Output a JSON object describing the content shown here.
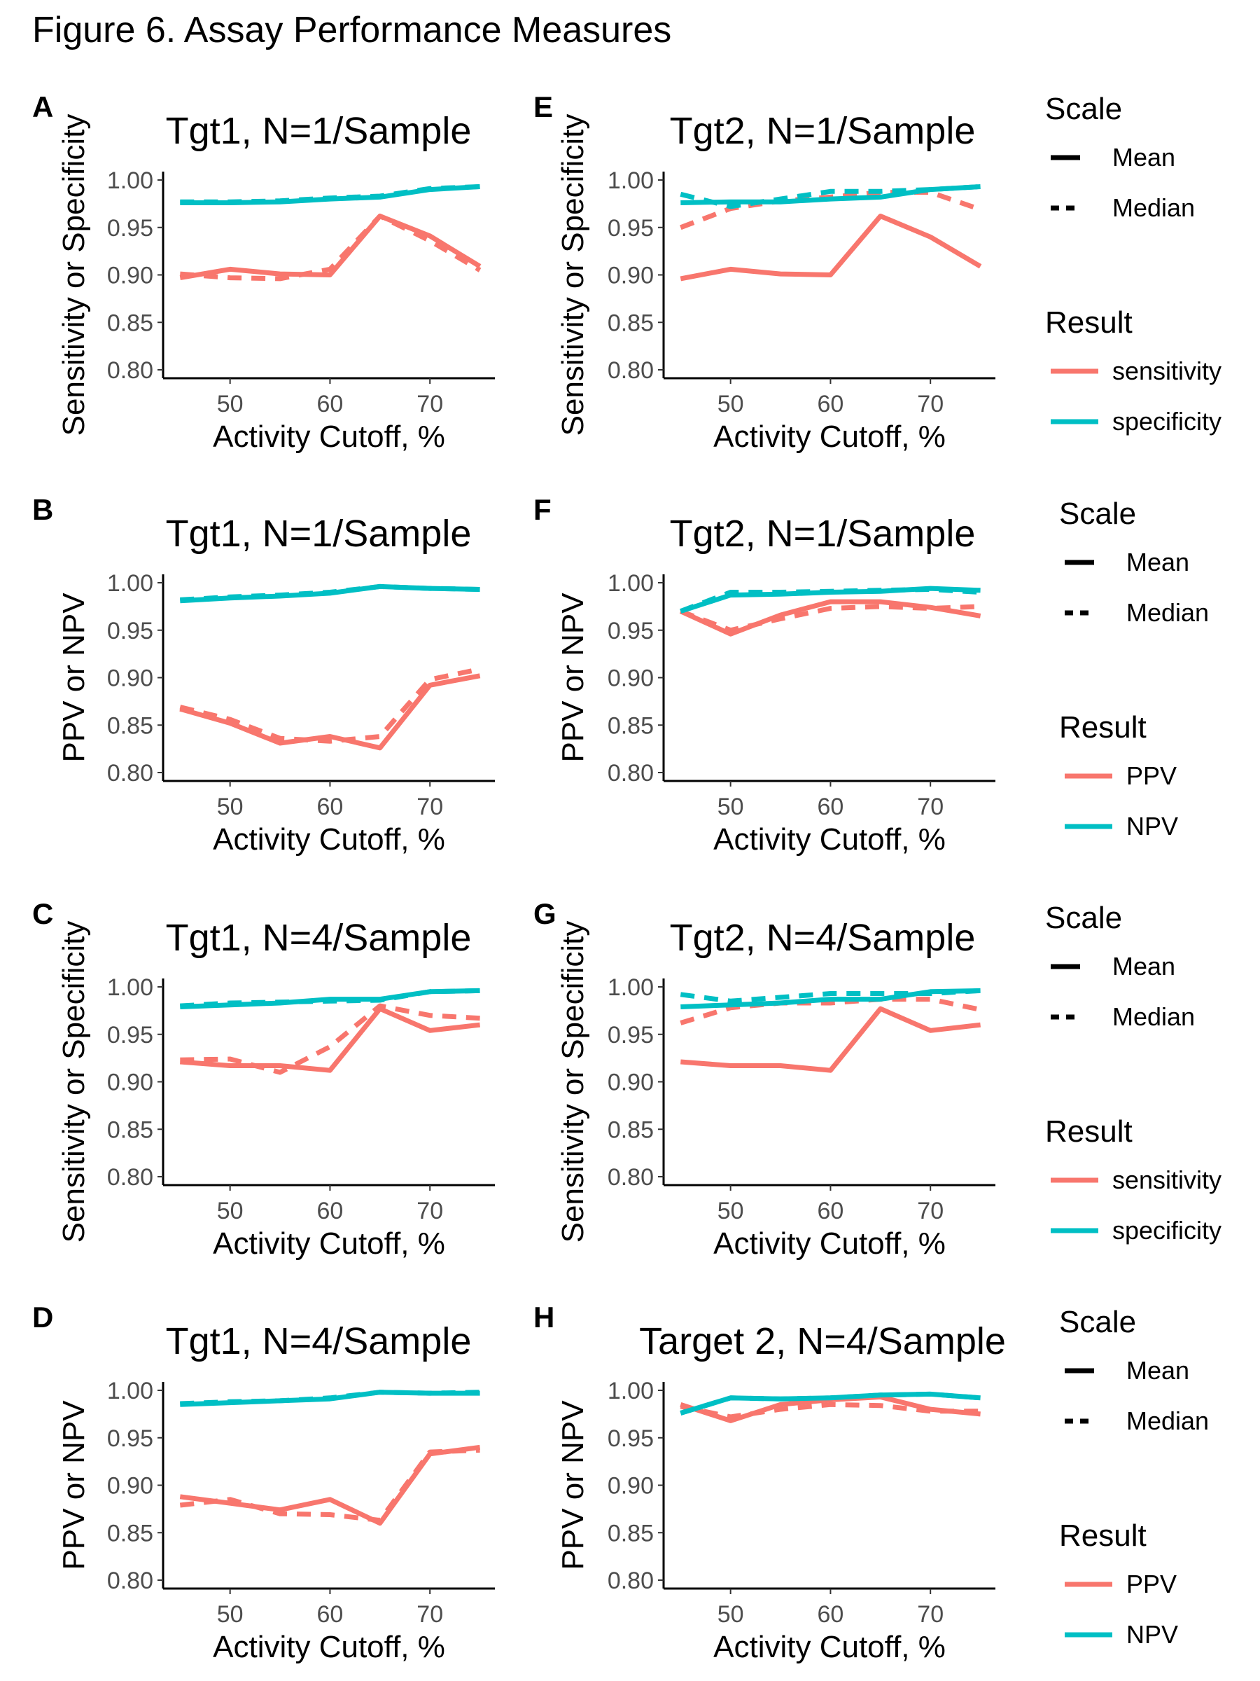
{
  "figure_title": "Figure 6. Assay Performance Measures",
  "colors": {
    "red": "#F8766D",
    "teal": "#00BFC4"
  },
  "chart_data": [
    {
      "panel": "A",
      "type": "line",
      "title": "Tgt1, N=1/Sample",
      "xlabel": "Activity Cutoff, %",
      "ylabel": "Sensitivity or Specificity",
      "x": [
        45,
        50,
        55,
        60,
        65,
        70,
        75
      ],
      "xticks": [
        50,
        60,
        70
      ],
      "ylim": [
        0.8,
        1.0
      ],
      "yticks": [
        "0.80",
        "0.85",
        "0.90",
        "0.95",
        "1.00"
      ],
      "series": [
        {
          "name": "sensitivity",
          "scale": "Mean",
          "values": [
            0.897,
            0.906,
            0.901,
            0.9,
            0.962,
            0.941,
            0.909
          ]
        },
        {
          "name": "sensitivity",
          "scale": "Median",
          "values": [
            0.901,
            0.897,
            0.896,
            0.906,
            0.962,
            0.936,
            0.905
          ]
        },
        {
          "name": "specificity",
          "scale": "Mean",
          "values": [
            0.976,
            0.976,
            0.977,
            0.98,
            0.982,
            0.99,
            0.993
          ]
        },
        {
          "name": "specificity",
          "scale": "Median",
          "values": [
            0.977,
            0.977,
            0.978,
            0.981,
            0.983,
            0.991,
            0.993
          ]
        }
      ]
    },
    {
      "panel": "B",
      "type": "line",
      "title": "Tgt1, N=1/Sample",
      "xlabel": "Activity Cutoff, %",
      "ylabel": "PPV or NPV",
      "x": [
        45,
        50,
        55,
        60,
        65,
        70,
        75
      ],
      "xticks": [
        50,
        60,
        70
      ],
      "ylim": [
        0.8,
        1.0
      ],
      "yticks": [
        "0.80",
        "0.85",
        "0.90",
        "0.95",
        "1.00"
      ],
      "series": [
        {
          "name": "PPV",
          "scale": "Mean",
          "values": [
            0.867,
            0.852,
            0.831,
            0.838,
            0.826,
            0.892,
            0.902
          ]
        },
        {
          "name": "PPV",
          "scale": "Median",
          "values": [
            0.869,
            0.856,
            0.836,
            0.833,
            0.838,
            0.898,
            0.909
          ]
        },
        {
          "name": "NPV",
          "scale": "Mean",
          "values": [
            0.981,
            0.984,
            0.986,
            0.989,
            0.996,
            0.994,
            0.993
          ]
        },
        {
          "name": "NPV",
          "scale": "Median",
          "values": [
            0.982,
            0.985,
            0.987,
            0.99,
            0.996,
            0.994,
            0.993
          ]
        }
      ]
    },
    {
      "panel": "C",
      "type": "line",
      "title": "Tgt1, N=4/Sample",
      "xlabel": "Activity Cutoff, %",
      "ylabel": "Sensitivity or Specificity",
      "x": [
        45,
        50,
        55,
        60,
        65,
        70,
        75
      ],
      "xticks": [
        50,
        60,
        70
      ],
      "ylim": [
        0.8,
        1.0
      ],
      "yticks": [
        "0.80",
        "0.85",
        "0.90",
        "0.95",
        "1.00"
      ],
      "series": [
        {
          "name": "sensitivity",
          "scale": "Mean",
          "values": [
            0.921,
            0.917,
            0.917,
            0.912,
            0.977,
            0.954,
            0.96
          ]
        },
        {
          "name": "sensitivity",
          "scale": "Median",
          "values": [
            0.923,
            0.924,
            0.91,
            0.937,
            0.98,
            0.97,
            0.967
          ]
        },
        {
          "name": "specificity",
          "scale": "Mean",
          "values": [
            0.979,
            0.981,
            0.983,
            0.987,
            0.987,
            0.995,
            0.996
          ]
        },
        {
          "name": "specificity",
          "scale": "Median",
          "values": [
            0.98,
            0.983,
            0.984,
            0.985,
            0.986,
            0.995,
            0.996
          ]
        }
      ]
    },
    {
      "panel": "D",
      "type": "line",
      "title": "Tgt1, N=4/Sample",
      "xlabel": "Activity Cutoff, %",
      "ylabel": "PPV or NPV",
      "x": [
        45,
        50,
        55,
        60,
        65,
        70,
        75
      ],
      "xticks": [
        50,
        60,
        70
      ],
      "ylim": [
        0.8,
        1.0
      ],
      "yticks": [
        "0.80",
        "0.85",
        "0.90",
        "0.95",
        "1.00"
      ],
      "series": [
        {
          "name": "PPV",
          "scale": "Mean",
          "values": [
            0.888,
            0.881,
            0.874,
            0.885,
            0.86,
            0.933,
            0.94
          ]
        },
        {
          "name": "PPV",
          "scale": "Median",
          "values": [
            0.879,
            0.885,
            0.87,
            0.869,
            0.863,
            0.935,
            0.937
          ]
        },
        {
          "name": "NPV",
          "scale": "Mean",
          "values": [
            0.985,
            0.987,
            0.989,
            0.991,
            0.998,
            0.997,
            0.997
          ]
        },
        {
          "name": "NPV",
          "scale": "Median",
          "values": [
            0.986,
            0.988,
            0.989,
            0.992,
            0.998,
            0.997,
            0.998
          ]
        }
      ]
    },
    {
      "panel": "E",
      "type": "line",
      "title": "Tgt2, N=1/Sample",
      "xlabel": "Activity Cutoff, %",
      "ylabel": "Sensitivity or Specificity",
      "x": [
        45,
        50,
        55,
        60,
        65,
        70,
        75
      ],
      "xticks": [
        50,
        60,
        70
      ],
      "ylim": [
        0.8,
        1.0
      ],
      "yticks": [
        "0.80",
        "0.85",
        "0.90",
        "0.95",
        "1.00"
      ],
      "series": [
        {
          "name": "sensitivity",
          "scale": "Mean",
          "values": [
            0.896,
            0.906,
            0.901,
            0.9,
            0.962,
            0.94,
            0.909
          ]
        },
        {
          "name": "sensitivity",
          "scale": "Median",
          "values": [
            0.95,
            0.97,
            0.978,
            0.982,
            0.987,
            0.987,
            0.969
          ]
        },
        {
          "name": "specificity",
          "scale": "Mean",
          "values": [
            0.976,
            0.977,
            0.977,
            0.98,
            0.982,
            0.99,
            0.993
          ]
        },
        {
          "name": "specificity",
          "scale": "Median",
          "values": [
            0.985,
            0.972,
            0.98,
            0.988,
            0.988,
            0.99,
            0.993
          ]
        }
      ]
    },
    {
      "panel": "F",
      "type": "line",
      "title": "Tgt2, N=1/Sample",
      "xlabel": "Activity Cutoff, %",
      "ylabel": "PPV or NPV",
      "x": [
        45,
        50,
        55,
        60,
        65,
        70,
        75
      ],
      "xticks": [
        50,
        60,
        70
      ],
      "ylim": [
        0.8,
        1.0
      ],
      "yticks": [
        "0.80",
        "0.85",
        "0.90",
        "0.95",
        "1.00"
      ],
      "series": [
        {
          "name": "PPV",
          "scale": "Mean",
          "values": [
            0.97,
            0.946,
            0.966,
            0.98,
            0.98,
            0.974,
            0.965
          ]
        },
        {
          "name": "PPV",
          "scale": "Median",
          "values": [
            0.97,
            0.95,
            0.962,
            0.973,
            0.975,
            0.973,
            0.975
          ]
        },
        {
          "name": "NPV",
          "scale": "Mean",
          "values": [
            0.97,
            0.987,
            0.988,
            0.99,
            0.991,
            0.994,
            0.992
          ]
        },
        {
          "name": "NPV",
          "scale": "Median",
          "values": [
            0.97,
            0.99,
            0.99,
            0.991,
            0.992,
            0.993,
            0.99
          ]
        }
      ]
    },
    {
      "panel": "G",
      "type": "line",
      "title": "Tgt2, N=4/Sample",
      "xlabel": "Activity Cutoff, %",
      "ylabel": "Sensitivity or Specificity",
      "x": [
        45,
        50,
        55,
        60,
        65,
        70,
        75
      ],
      "xticks": [
        50,
        60,
        70
      ],
      "ylim": [
        0.8,
        1.0
      ],
      "yticks": [
        "0.80",
        "0.85",
        "0.90",
        "0.95",
        "1.00"
      ],
      "series": [
        {
          "name": "sensitivity",
          "scale": "Mean",
          "values": [
            0.921,
            0.917,
            0.917,
            0.912,
            0.977,
            0.954,
            0.96
          ]
        },
        {
          "name": "sensitivity",
          "scale": "Median",
          "values": [
            0.962,
            0.978,
            0.983,
            0.983,
            0.987,
            0.987,
            0.976
          ]
        },
        {
          "name": "specificity",
          "scale": "Mean",
          "values": [
            0.979,
            0.981,
            0.983,
            0.987,
            0.987,
            0.995,
            0.996
          ]
        },
        {
          "name": "specificity",
          "scale": "Median",
          "values": [
            0.992,
            0.985,
            0.989,
            0.993,
            0.993,
            0.993,
            0.996
          ]
        }
      ]
    },
    {
      "panel": "H",
      "type": "line",
      "title": "Target 2, N=4/Sample",
      "xlabel": "Activity Cutoff, %",
      "ylabel": "PPV or NPV",
      "x": [
        45,
        50,
        55,
        60,
        65,
        70,
        75
      ],
      "xticks": [
        50,
        60,
        70
      ],
      "ylim": [
        0.8,
        1.0
      ],
      "yticks": [
        "0.80",
        "0.85",
        "0.90",
        "0.95",
        "1.00"
      ],
      "series": [
        {
          "name": "PPV",
          "scale": "Mean",
          "values": [
            0.985,
            0.968,
            0.985,
            0.99,
            0.993,
            0.98,
            0.975
          ]
        },
        {
          "name": "PPV",
          "scale": "Median",
          "values": [
            0.983,
            0.972,
            0.98,
            0.985,
            0.984,
            0.978,
            0.978
          ]
        },
        {
          "name": "NPV",
          "scale": "Mean",
          "values": [
            0.976,
            0.992,
            0.991,
            0.992,
            0.995,
            0.996,
            0.992
          ]
        },
        {
          "name": "NPV",
          "scale": "Median",
          "values": [
            0.976,
            0.992,
            0.991,
            0.992,
            0.995,
            0.996,
            0.992
          ]
        }
      ]
    }
  ],
  "legends": [
    {
      "scale_title": "Scale",
      "scale_items": [
        "Mean",
        "Median"
      ],
      "result_title": "Result",
      "result_items": [
        "sensitivity",
        "specificity"
      ]
    },
    {
      "scale_title": "Scale",
      "scale_items": [
        "Mean",
        "Median"
      ],
      "result_title": "Result",
      "result_items": [
        "PPV",
        "NPV"
      ]
    },
    {
      "scale_title": "Scale",
      "scale_items": [
        "Mean",
        "Median"
      ],
      "result_title": "Result",
      "result_items": [
        "sensitivity",
        "specificity"
      ]
    },
    {
      "scale_title": "Scale",
      "scale_items": [
        "Mean",
        "Median"
      ],
      "result_title": "Result",
      "result_items": [
        "PPV",
        "NPV"
      ]
    }
  ]
}
